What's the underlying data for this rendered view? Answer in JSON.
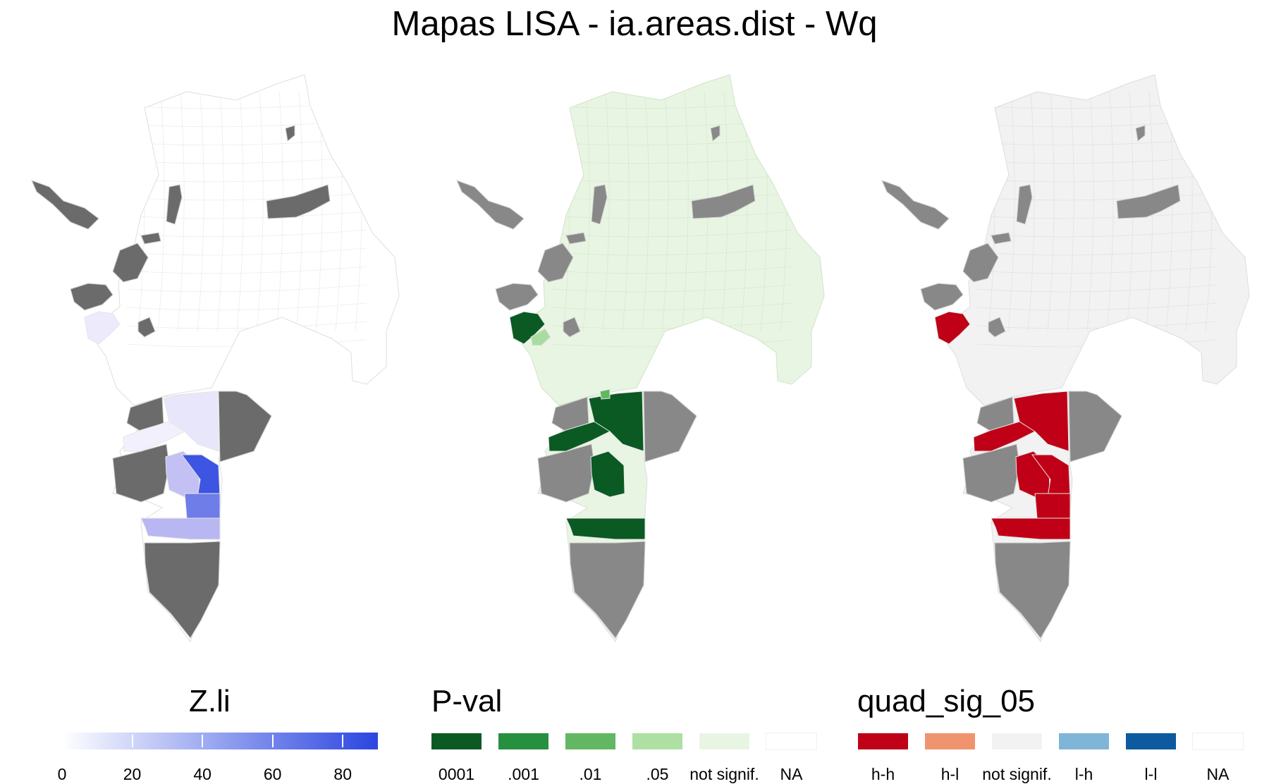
{
  "title": "Mapas LISA - ia.areas.dist - Wq",
  "colors": {
    "missing_dark": "#6b6b6b",
    "missing_mid": "#888888",
    "border": "#e6e6e6",
    "zli_low": "#ffffff",
    "zli_high": "#2b45e0"
  },
  "maps": [
    {
      "name": "zli-map",
      "base_fill": "#ffffff",
      "missing_fill": "#6b6b6b",
      "highlights": [
        {
          "region": "west-patch",
          "fill": "#eceafb"
        },
        {
          "region": "south-north-band",
          "fill": "#f1f0fc"
        },
        {
          "region": "south-east-block",
          "fill": "#e8e6fa"
        },
        {
          "region": "south-core-west",
          "fill": "#c3c0f3"
        },
        {
          "region": "south-core-east",
          "fill": "#3d55e2"
        },
        {
          "region": "south-mid",
          "fill": "#6f7de8"
        },
        {
          "region": "south-band",
          "fill": "#b9b7f2"
        }
      ]
    },
    {
      "name": "pval-map",
      "base_fill": "#e9f5e3",
      "missing_fill": "#888888",
      "highlights": [
        {
          "region": "west-patch",
          "fill": "#0b5a23"
        },
        {
          "region": "west-sub",
          "fill": "#a8dca0"
        },
        {
          "region": "south-north-band",
          "fill": "#0b5a23"
        },
        {
          "region": "south-east-block",
          "fill": "#0b5a23"
        },
        {
          "region": "south-core-west",
          "fill": "#0b5a23"
        },
        {
          "region": "south-band",
          "fill": "#0b5a23"
        },
        {
          "region": "small-green",
          "fill": "#5eb85c"
        }
      ]
    },
    {
      "name": "quad-map",
      "base_fill": "#f2f2f2",
      "missing_fill": "#888888",
      "highlights": [
        {
          "region": "west-patch",
          "fill": "#bf0016"
        },
        {
          "region": "south-north-band",
          "fill": "#bf0016"
        },
        {
          "region": "south-east-block",
          "fill": "#bf0016"
        },
        {
          "region": "south-core-west",
          "fill": "#bf0016"
        },
        {
          "region": "south-core-east",
          "fill": "#bf0016"
        },
        {
          "region": "south-mid",
          "fill": "#bf0016"
        },
        {
          "region": "south-band",
          "fill": "#bf0016"
        }
      ]
    }
  ],
  "legends": {
    "zli": {
      "title": "Z.li",
      "ticks": [
        "0",
        "20",
        "40",
        "60",
        "80"
      ],
      "tick_values": [
        0,
        20,
        40,
        60,
        80
      ],
      "range": [
        0,
        90
      ]
    },
    "pval": {
      "title": "P-val",
      "items": [
        {
          "label": "0001",
          "color": "#0b5a23"
        },
        {
          "label": ".001",
          "color": "#27903f"
        },
        {
          "label": ".01",
          "color": "#62b862"
        },
        {
          "label": ".05",
          "color": "#aee0a4"
        },
        {
          "label": "not signif.",
          "color": "#e9f5e3"
        },
        {
          "label": "NA",
          "color": "#ffffff"
        }
      ]
    },
    "quad": {
      "title": "quad_sig_05",
      "items": [
        {
          "label": "h-h",
          "color": "#c00017"
        },
        {
          "label": "h-l",
          "color": "#f0946f"
        },
        {
          "label": "not signif.",
          "color": "#f2f2f2"
        },
        {
          "label": "l-h",
          "color": "#7fb6d8"
        },
        {
          "label": "l-l",
          "color": "#0d5a9e"
        },
        {
          "label": "NA",
          "color": "#ffffff"
        }
      ]
    }
  }
}
